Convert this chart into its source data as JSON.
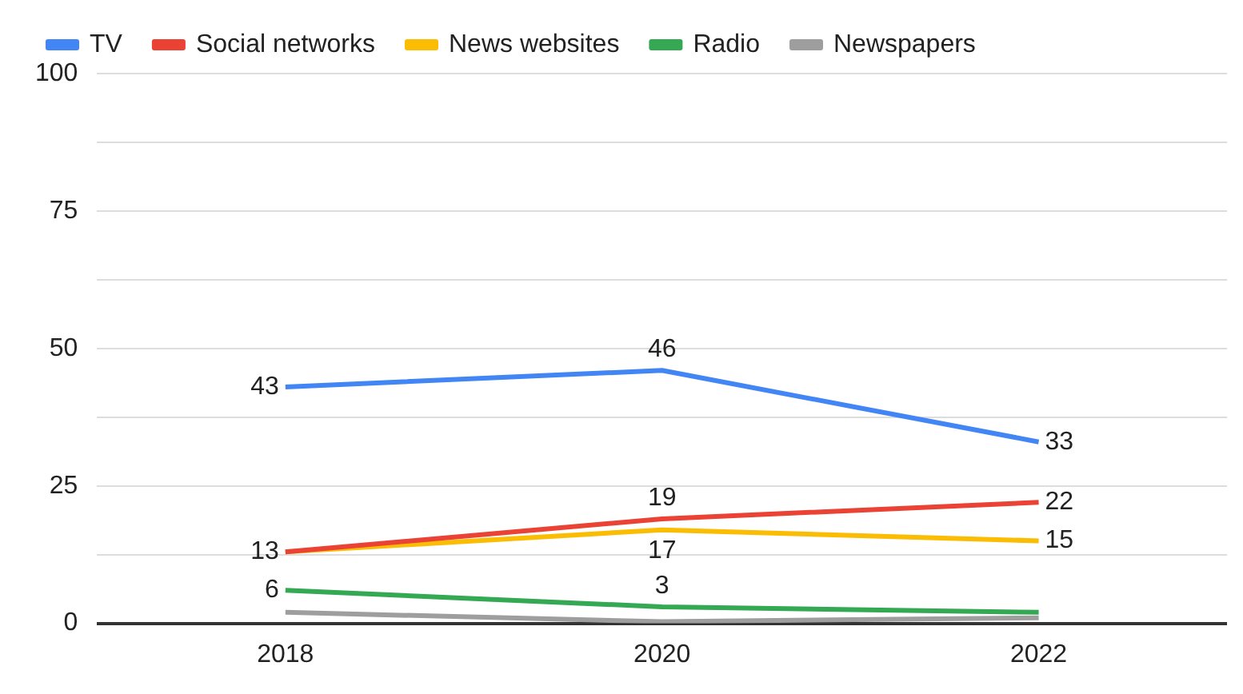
{
  "chart_data": {
    "type": "line",
    "categories": [
      "2018",
      "2020",
      "2022"
    ],
    "series": [
      {
        "name": "TV",
        "color": "#4285f4",
        "values": [
          43,
          46,
          33
        ],
        "value_labels": [
          "43",
          "46",
          "33"
        ]
      },
      {
        "name": "Social networks",
        "color": "#ea4335",
        "values": [
          13,
          19,
          22
        ],
        "value_labels": [
          null,
          "19",
          "22"
        ]
      },
      {
        "name": "News websites",
        "color": "#fbbc04",
        "values": [
          13,
          17,
          15
        ],
        "value_labels": [
          "13",
          "17",
          "15"
        ]
      },
      {
        "name": "Radio",
        "color": "#34a853",
        "values": [
          6,
          3,
          2
        ],
        "value_labels": [
          "6",
          "3",
          null
        ]
      },
      {
        "name": "Newspapers",
        "color": "#9e9e9e",
        "values": [
          2,
          0.3,
          1
        ],
        "value_labels": [
          null,
          null,
          null
        ]
      }
    ],
    "ylim": [
      0,
      100
    ],
    "yticks": [
      0,
      {
        "value": 12.5,
        "label": null
      },
      25,
      {
        "value": 37.5,
        "label": null
      },
      50,
      {
        "value": 62.5,
        "label": null
      },
      75,
      {
        "value": 87.5,
        "label": null
      },
      100
    ],
    "grid": "y",
    "legend": "top",
    "marker": "none",
    "line_style": "solid"
  }
}
